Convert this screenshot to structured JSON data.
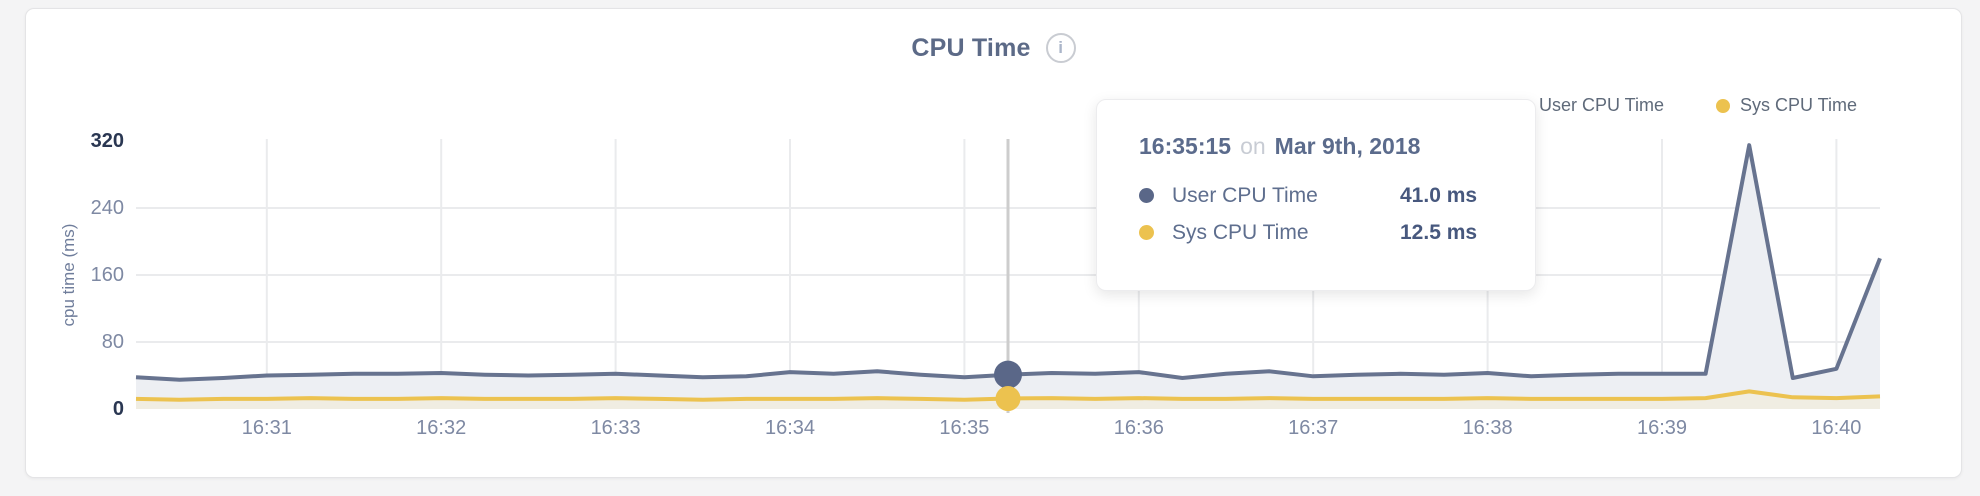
{
  "header": {
    "title": "CPU Time",
    "info_glyph": "i"
  },
  "legend": {
    "items": [
      {
        "label": "User CPU Time",
        "color": "#5a6788"
      },
      {
        "label": "Sys CPU Time",
        "color": "#ecc24f"
      }
    ]
  },
  "axes": {
    "y_label": "cpu time (ms)",
    "y_ticks": [
      0,
      80,
      160,
      240,
      320
    ],
    "x_ticks": [
      "16:31",
      "16:32",
      "16:33",
      "16:34",
      "16:35",
      "16:36",
      "16:37",
      "16:38",
      "16:39",
      "16:40"
    ]
  },
  "tooltip": {
    "time": "16:35:15",
    "separator": "on",
    "date": "Mar 9th, 2018",
    "rows": [
      {
        "name": "User CPU Time",
        "value": "41.0 ms",
        "color": "#5a6788"
      },
      {
        "name": "Sys CPU Time",
        "value": "12.5 ms",
        "color": "#ecc24f"
      }
    ]
  },
  "chart_data": {
    "type": "line",
    "title": "CPU Time",
    "ylabel": "cpu time (ms)",
    "ylim": [
      0,
      320
    ],
    "y_ticks": [
      0,
      80,
      160,
      240,
      320
    ],
    "grid": true,
    "legend_position": "top-right",
    "x_start": "16:30:15",
    "x_end": "16:40:15",
    "x_interval_seconds": 15,
    "x_tick_labels": [
      "16:31",
      "16:32",
      "16:33",
      "16:34",
      "16:35",
      "16:36",
      "16:37",
      "16:38",
      "16:39",
      "16:40"
    ],
    "x_tick_offsets_s": [
      45,
      105,
      165,
      225,
      285,
      345,
      405,
      465,
      525,
      585
    ],
    "hover_index": 20,
    "hover": {
      "time": "16:35:15",
      "user_cpu_ms": 41.0,
      "sys_cpu_ms": 12.5
    },
    "series": [
      {
        "name": "User CPU Time",
        "color": "#67738f",
        "dot_color": "#5a6788",
        "fill": "#edeff3",
        "values": [
          38,
          35,
          37,
          40,
          41,
          42,
          42,
          43,
          41,
          40,
          41,
          42,
          40,
          38,
          39,
          44,
          42,
          45,
          41,
          38,
          41,
          43,
          42,
          44,
          37,
          42,
          45,
          39,
          41,
          42,
          41,
          43,
          39,
          41,
          42,
          42,
          42,
          315,
          37,
          48,
          180
        ]
      },
      {
        "name": "Sys CPU Time",
        "color": "#ecc24f",
        "dot_color": "#ecc24f",
        "fill": "#f0ede2",
        "values": [
          12,
          11,
          12,
          12,
          13,
          12,
          12,
          13,
          12,
          12,
          12,
          13,
          12,
          11,
          12,
          12,
          12,
          13,
          12,
          11,
          12.5,
          13,
          12,
          13,
          12,
          12,
          13,
          12,
          12,
          12,
          12,
          13,
          12,
          12,
          12,
          12,
          13,
          21,
          14,
          13,
          15
        ]
      }
    ],
    "colors": {
      "grid": "#eaebed",
      "hover_line": "#cdcdcd",
      "axis_text": "#7e89a3",
      "axis_text_emphasis": "#2a3752"
    }
  }
}
